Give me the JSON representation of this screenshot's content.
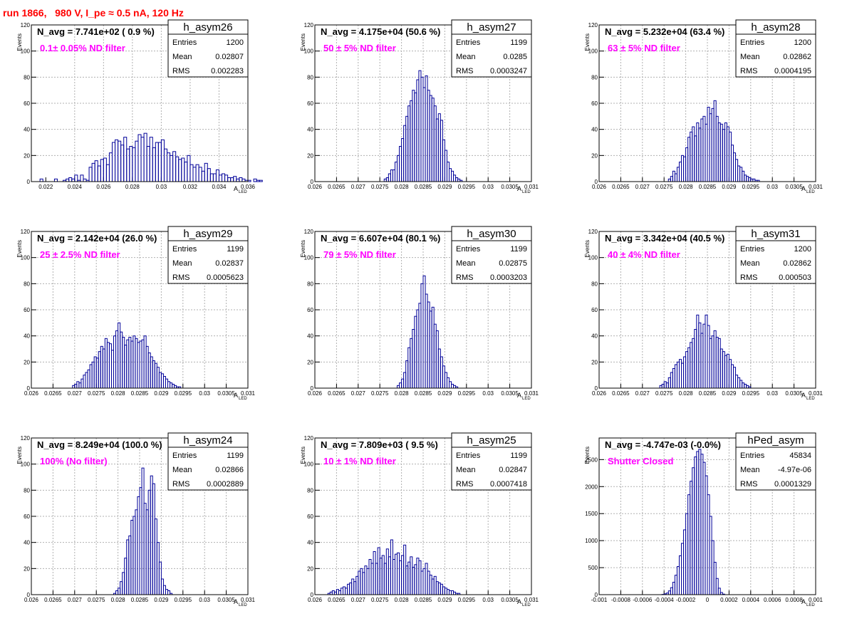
{
  "run_title": "run 1866,   980 V, I_pe ≈ 0.5 nA, 120 Hz",
  "colors": {
    "title": "#ff0000",
    "annotation": "#ff00ff",
    "histogram": "#000099",
    "grid": "#b0b0b0"
  },
  "stats_labels": {
    "entries": "Entries",
    "mean": "Mean",
    "rms": "RMS"
  },
  "y_axis_label": "Events",
  "x_axis_label": {
    "main": "A",
    "sub": "LED"
  },
  "chart_data": [
    {
      "type": "bar",
      "name": "h_asym26",
      "header": "N_avg = 7.741e+02 ( 0.9 %)",
      "note": "0.1± 0.05% ND filter",
      "entries": "1200",
      "mean": "0.02807",
      "rms": "0.002283",
      "xlim": [
        0.021,
        0.036
      ],
      "ylim": [
        0,
        120
      ],
      "xticks": [
        "0.022",
        "0.024",
        "0.026",
        "0.028",
        "0.03",
        "0.032",
        "0.034",
        "0.036"
      ],
      "yticks": [
        "20",
        "40",
        "60",
        "80",
        "100",
        "120"
      ],
      "grid": true,
      "legend": "top-right",
      "bin_start": 0.0216,
      "bin_width": 0.0002,
      "values": [
        2,
        0,
        0,
        0,
        0,
        2,
        0,
        0,
        1,
        2,
        3,
        2,
        5,
        1,
        5,
        2,
        1,
        11,
        14,
        16,
        12,
        17,
        18,
        13,
        22,
        30,
        32,
        31,
        28,
        34,
        25,
        27,
        26,
        31,
        36,
        34,
        37,
        27,
        34,
        26,
        30,
        30,
        32,
        25,
        22,
        20,
        23,
        19,
        17,
        18,
        15,
        20,
        13,
        11,
        13,
        11,
        8,
        14,
        10,
        6,
        6,
        9,
        5,
        6,
        5,
        3,
        3,
        4,
        2,
        3,
        2,
        1,
        1,
        0,
        2,
        1,
        1
      ]
    },
    {
      "type": "bar",
      "name": "h_asym27",
      "header": "N_avg = 4.175e+04 (50.6 %)",
      "note": "50 ± 5% ND filter",
      "entries": "1199",
      "mean": "0.0285",
      "rms": "0.0003247",
      "xlim": [
        0.026,
        0.031
      ],
      "ylim": [
        0,
        120
      ],
      "xticks": [
        "0.026",
        "0.0265",
        "0.027",
        "0.0275",
        "0.028",
        "0.0285",
        "0.029",
        "0.0295",
        "0.03",
        "0.0305",
        "0.031"
      ],
      "yticks": [
        "20",
        "40",
        "60",
        "80",
        "100",
        "120"
      ],
      "grid": true,
      "legend": "top-right",
      "bin_start": 0.0276,
      "bin_width": 5e-05,
      "values": [
        2,
        3,
        6,
        9,
        9,
        15,
        20,
        27,
        33,
        43,
        50,
        58,
        62,
        70,
        68,
        78,
        85,
        80,
        72,
        81,
        70,
        66,
        64,
        58,
        48,
        52,
        47,
        32,
        24,
        15,
        10,
        8,
        5,
        3,
        2,
        1
      ]
    },
    {
      "type": "bar",
      "name": "h_asym28",
      "header": "N_avg = 5.232e+04 (63.4 %)",
      "note": "63 ± 5% ND filter",
      "entries": "1200",
      "mean": "0.02862",
      "rms": "0.0004195",
      "xlim": [
        0.026,
        0.031
      ],
      "ylim": [
        0,
        120
      ],
      "xticks": [
        "0.026",
        "0.0265",
        "0.027",
        "0.0275",
        "0.028",
        "0.0285",
        "0.029",
        "0.0295",
        "0.03",
        "0.0305",
        "0.031"
      ],
      "yticks": [
        "20",
        "40",
        "60",
        "80",
        "100",
        "120"
      ],
      "grid": true,
      "legend": "top-right",
      "bin_start": 0.0276,
      "bin_width": 5e-05,
      "values": [
        2,
        4,
        8,
        6,
        11,
        15,
        20,
        19,
        26,
        34,
        38,
        42,
        35,
        45,
        41,
        48,
        50,
        44,
        57,
        52,
        56,
        62,
        50,
        45,
        44,
        40,
        45,
        42,
        38,
        28,
        22,
        17,
        12,
        11,
        8,
        5,
        4,
        3,
        2,
        2,
        1,
        1
      ]
    },
    {
      "type": "bar",
      "name": "h_asym29",
      "header": "N_avg = 2.142e+04 (26.0 %)",
      "note": "25 ± 2.5% ND filter",
      "entries": "1199",
      "mean": "0.02837",
      "rms": "0.0005623",
      "xlim": [
        0.026,
        0.031
      ],
      "ylim": [
        0,
        120
      ],
      "xticks": [
        "0.026",
        "0.0265",
        "0.027",
        "0.0275",
        "0.028",
        "0.0285",
        "0.029",
        "0.0295",
        "0.03",
        "0.0305",
        "0.031"
      ],
      "yticks": [
        "20",
        "40",
        "60",
        "80",
        "100",
        "120"
      ],
      "grid": true,
      "legend": "top-right",
      "bin_start": 0.02695,
      "bin_width": 5e-05,
      "values": [
        2,
        3,
        5,
        4,
        7,
        10,
        12,
        14,
        18,
        20,
        24,
        23,
        28,
        32,
        30,
        38,
        35,
        34,
        29,
        40,
        44,
        50,
        43,
        39,
        33,
        37,
        39,
        36,
        40,
        38,
        35,
        36,
        37,
        40,
        32,
        27,
        24,
        21,
        19,
        16,
        12,
        11,
        9,
        7,
        5,
        4,
        3,
        2,
        1,
        1
      ]
    },
    {
      "type": "bar",
      "name": "h_asym30",
      "header": "N_avg = 6.607e+04 (80.1 %)",
      "note": "79 ± 5% ND filter",
      "entries": "1199",
      "mean": "0.02875",
      "rms": "0.0003203",
      "xlim": [
        0.026,
        0.031
      ],
      "ylim": [
        0,
        120
      ],
      "xticks": [
        "0.026",
        "0.0265",
        "0.027",
        "0.0275",
        "0.028",
        "0.0285",
        "0.029",
        "0.0295",
        "0.03",
        "0.0305",
        "0.031"
      ],
      "yticks": [
        "20",
        "40",
        "60",
        "80",
        "100",
        "120"
      ],
      "grid": true,
      "legend": "top-right",
      "bin_start": 0.0279,
      "bin_width": 5e-05,
      "values": [
        2,
        4,
        7,
        12,
        21,
        31,
        38,
        45,
        55,
        60,
        65,
        80,
        86,
        72,
        66,
        59,
        62,
        49,
        44,
        30,
        24,
        17,
        12,
        8,
        5,
        3,
        2,
        1
      ]
    },
    {
      "type": "bar",
      "name": "h_asym31",
      "header": "N_avg = 3.342e+04 (40.5 %)",
      "note": "40 ± 4% ND filter",
      "entries": "1200",
      "mean": "0.02862",
      "rms": "0.000503",
      "xlim": [
        0.026,
        0.031
      ],
      "ylim": [
        0,
        120
      ],
      "xticks": [
        "0.026",
        "0.0265",
        "0.027",
        "0.0275",
        "0.028",
        "0.0285",
        "0.029",
        "0.0295",
        "0.03",
        "0.0305",
        "0.031"
      ],
      "yticks": [
        "20",
        "40",
        "60",
        "80",
        "100",
        "120"
      ],
      "grid": true,
      "legend": "top-right",
      "bin_start": 0.0274,
      "bin_width": 5e-05,
      "values": [
        2,
        3,
        5,
        4,
        8,
        12,
        15,
        18,
        20,
        22,
        19,
        24,
        28,
        31,
        35,
        38,
        45,
        56,
        50,
        42,
        49,
        56,
        48,
        38,
        40,
        44,
        39,
        38,
        30,
        28,
        25,
        26,
        22,
        18,
        16,
        10,
        8,
        6,
        4,
        3,
        2,
        1
      ]
    },
    {
      "type": "bar",
      "name": "h_asym24",
      "header": "N_avg = 8.249e+04 (100.0 %)",
      "note": "100% (No filter)",
      "entries": "1199",
      "mean": "0.02866",
      "rms": "0.0002889",
      "xlim": [
        0.026,
        0.031
      ],
      "ylim": [
        0,
        120
      ],
      "xticks": [
        "0.026",
        "0.0265",
        "0.027",
        "0.0275",
        "0.028",
        "0.0285",
        "0.029",
        "0.0295",
        "0.03",
        "0.0305",
        "0.031"
      ],
      "yticks": [
        "20",
        "40",
        "60",
        "80",
        "100",
        "120"
      ],
      "grid": true,
      "legend": "top-right",
      "bin_start": 0.0279,
      "bin_width": 5e-05,
      "values": [
        1,
        3,
        5,
        10,
        17,
        28,
        42,
        45,
        57,
        60,
        65,
        75,
        82,
        97,
        70,
        65,
        80,
        91,
        85,
        58,
        40,
        25,
        12,
        7,
        4,
        3,
        1
      ]
    },
    {
      "type": "bar",
      "name": "h_asym25",
      "header": "N_avg = 7.809e+03 ( 9.5 %)",
      "note": "10 ± 1% ND filter",
      "entries": "1199",
      "mean": "0.02847",
      "rms": "0.0007418",
      "xlim": [
        0.026,
        0.031
      ],
      "ylim": [
        0,
        120
      ],
      "xticks": [
        "0.026",
        "0.0265",
        "0.027",
        "0.0275",
        "0.028",
        "0.0285",
        "0.029",
        "0.0295",
        "0.03",
        "0.0305",
        "0.031"
      ],
      "yticks": [
        "20",
        "40",
        "60",
        "80",
        "100",
        "120"
      ],
      "grid": true,
      "legend": "top-right",
      "bin_start": 0.0263,
      "bin_width": 5e-05,
      "values": [
        1,
        2,
        3,
        2,
        4,
        3,
        5,
        6,
        5,
        8,
        9,
        12,
        10,
        14,
        18,
        20,
        17,
        22,
        20,
        27,
        24,
        33,
        24,
        36,
        28,
        30,
        24,
        35,
        29,
        42,
        27,
        31,
        32,
        26,
        30,
        38,
        22,
        25,
        29,
        21,
        23,
        28,
        26,
        18,
        20,
        24,
        18,
        15,
        12,
        14,
        10,
        9,
        8,
        6,
        5,
        4,
        3,
        3,
        2,
        1,
        1
      ]
    },
    {
      "type": "bar",
      "name": "hPed_asym",
      "header": "N_avg = -4.747e-03 (-0.0%)",
      "note": "Shutter Closed",
      "entries": "45834",
      "mean": "-4.97e-06",
      "rms": "0.0001329",
      "xlim": [
        -0.001,
        0.001
      ],
      "ylim": [
        0,
        2900
      ],
      "xticks": [
        "-0.001",
        "-0.0008",
        "-0.0006",
        "-0.0004",
        "-0.0002",
        "0",
        "0.0002",
        "0.0004",
        "0.0006",
        "0.0008",
        "0.001"
      ],
      "yticks": [
        "500",
        "1000",
        "1500",
        "2000",
        "2500"
      ],
      "grid": true,
      "legend": "top-right",
      "bin_start": -0.00042,
      "bin_width": 2e-05,
      "values": [
        5,
        15,
        30,
        70,
        130,
        230,
        360,
        520,
        720,
        950,
        1200,
        1500,
        1850,
        2100,
        2350,
        2550,
        2650,
        2690,
        2600,
        2450,
        2200,
        1850,
        1450,
        1000,
        600,
        300,
        120,
        40,
        10
      ]
    }
  ]
}
